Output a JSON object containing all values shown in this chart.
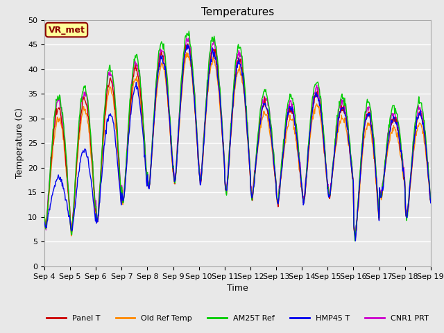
{
  "title": "Temperatures",
  "xlabel": "Time",
  "ylabel": "Temperature (C)",
  "ylim": [
    0,
    50
  ],
  "yticks": [
    0,
    5,
    10,
    15,
    20,
    25,
    30,
    35,
    40,
    45,
    50
  ],
  "xtick_labels": [
    "Sep 4",
    "Sep 5",
    "Sep 6",
    "Sep 7",
    "Sep 8",
    "Sep 9",
    "Sep 10",
    "Sep 11",
    "Sep 12",
    "Sep 13",
    "Sep 14",
    "Sep 15",
    "Sep 16",
    "Sep 17",
    "Sep 18",
    "Sep 19"
  ],
  "plot_bg_color": "#e8e8e8",
  "grid_color": "white",
  "annotation_text": "VR_met",
  "annotation_color": "#8b0000",
  "annotation_bg": "#ffff99",
  "series_colors": {
    "Panel T": "#cc0000",
    "Old Ref Temp": "#ff8800",
    "AM25T Ref": "#00cc00",
    "HMP45 T": "#0000ee",
    "CNR1 PRT": "#cc00cc"
  },
  "title_fontsize": 11,
  "axis_label_fontsize": 9,
  "tick_fontsize": 8,
  "n_days": 15,
  "n_per_day": 48,
  "day_peaks": [
    32,
    34,
    38,
    40,
    43,
    45,
    44,
    42,
    33,
    32,
    35,
    32,
    31,
    30,
    31
  ],
  "day_mins": [
    8,
    7,
    9,
    13,
    16,
    17,
    17,
    15,
    14,
    13,
    13,
    14,
    6,
    14,
    10
  ]
}
